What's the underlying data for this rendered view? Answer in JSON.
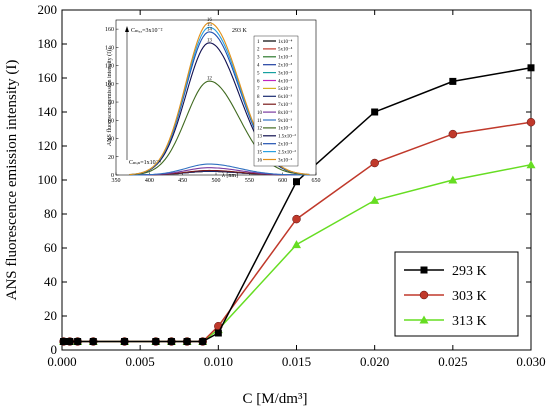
{
  "chart_data": {
    "type": "line",
    "xlabel": "C [M/dm³]",
    "ylabel": "ANS fluorescence emission intensity (I)",
    "xlim": [
      0.0,
      0.03
    ],
    "ylim": [
      0,
      200
    ],
    "x_ticks": [
      "0.000",
      "0.005",
      "0.010",
      "0.015",
      "0.020",
      "0.025",
      "0.030"
    ],
    "y_ticks": [
      "0",
      "20",
      "40",
      "60",
      "80",
      "100",
      "120",
      "140",
      "160",
      "180",
      "200"
    ],
    "legend_position": "bottom-right",
    "series": [
      {
        "name": "293 K",
        "color": "#000000",
        "marker": "square",
        "x": [
          0.0001,
          0.0005,
          0.001,
          0.002,
          0.004,
          0.006,
          0.007,
          0.008,
          0.009,
          0.01,
          0.015,
          0.02,
          0.025,
          0.03
        ],
        "y": [
          5,
          5,
          5,
          5,
          5,
          5,
          5,
          5,
          5,
          10,
          99,
          140,
          158,
          166
        ]
      },
      {
        "name": "303 K",
        "color": "#c0392b",
        "marker": "circle",
        "x": [
          0.0001,
          0.0005,
          0.001,
          0.002,
          0.004,
          0.006,
          0.007,
          0.008,
          0.009,
          0.01,
          0.015,
          0.02,
          0.025,
          0.03
        ],
        "y": [
          5,
          5,
          5,
          5,
          5,
          5,
          5,
          5,
          5,
          14,
          77,
          110,
          127,
          134
        ]
      },
      {
        "name": "313 K",
        "color": "#66dd22",
        "marker": "triangle",
        "x": [
          0.0001,
          0.0005,
          0.001,
          0.002,
          0.004,
          0.006,
          0.007,
          0.008,
          0.009,
          0.01,
          0.015,
          0.02,
          0.025,
          0.03
        ],
        "y": [
          5,
          5,
          5,
          5,
          5,
          5,
          5,
          5,
          5,
          12,
          62,
          88,
          100,
          109
        ]
      }
    ],
    "inset": {
      "type": "line",
      "xlabel": "λ [nm]",
      "ylabel": "ANS fluorescence emission intensity (I)",
      "xlim": [
        350,
        650
      ],
      "ylim": [
        0,
        170
      ],
      "x_ticks": [
        "350",
        "400",
        "450",
        "500",
        "550",
        "600",
        "650"
      ],
      "y_ticks": [
        "0",
        "20",
        "40",
        "60",
        "80",
        "100",
        "120",
        "140",
        "160"
      ],
      "temperature_label": "293 K",
      "c_max_label": "Cₘₐₓ=3x10⁻²",
      "c_min_label": "Cₘᵢₙ=1x10⁻⁴",
      "legend": [
        {
          "num": "1",
          "conc": "1x10⁻⁴",
          "color": "#000000"
        },
        {
          "num": "2",
          "conc": "5x10⁻⁴",
          "color": "#c0392b"
        },
        {
          "num": "3",
          "conc": "1x10⁻³",
          "color": "#2c7a2c"
        },
        {
          "num": "4",
          "conc": "2x10⁻³",
          "color": "#1f3fa0"
        },
        {
          "num": "5",
          "conc": "3x10⁻³",
          "color": "#16a0a0"
        },
        {
          "num": "6",
          "conc": "4x10⁻³",
          "color": "#c026c0"
        },
        {
          "num": "7",
          "conc": "5x10⁻³",
          "color": "#d4b020"
        },
        {
          "num": "8",
          "conc": "6x10⁻³",
          "color": "#1a2a70"
        },
        {
          "num": "9",
          "conc": "7x10⁻³",
          "color": "#7a1a1a"
        },
        {
          "num": "10",
          "conc": "8x10⁻³",
          "color": "#7a3aa0"
        },
        {
          "num": "11",
          "conc": "9x10⁻³",
          "color": "#3070c0"
        },
        {
          "num": "12",
          "conc": "1x10⁻²",
          "color": "#406a20"
        },
        {
          "num": "13",
          "conc": "1.5x10⁻²",
          "color": "#101050"
        },
        {
          "num": "14",
          "conc": "2x10⁻²",
          "color": "#2050b0"
        },
        {
          "num": "15",
          "conc": "2.5x10⁻²",
          "color": "#2aa0e0"
        },
        {
          "num": "16",
          "conc": "3x10⁻²",
          "color": "#e0901a"
        }
      ],
      "peak_wavelength": 490,
      "curves": [
        {
          "num": "1",
          "peak": 4,
          "color": "#000000"
        },
        {
          "num": "2",
          "peak": 4,
          "color": "#c0392b"
        },
        {
          "num": "3",
          "peak": 4,
          "color": "#2c7a2c"
        },
        {
          "num": "4",
          "peak": 4,
          "color": "#1f3fa0"
        },
        {
          "num": "5",
          "peak": 4,
          "color": "#16a0a0"
        },
        {
          "num": "6",
          "peak": 4,
          "color": "#c026c0"
        },
        {
          "num": "7",
          "peak": 4,
          "color": "#d4b020"
        },
        {
          "num": "8",
          "peak": 4,
          "color": "#1a2a70"
        },
        {
          "num": "9",
          "peak": 5,
          "color": "#7a1a1a"
        },
        {
          "num": "10",
          "peak": 8,
          "color": "#7a3aa0"
        },
        {
          "num": "11",
          "peak": 12,
          "color": "#3070c0"
        },
        {
          "num": "12",
          "peak": 103,
          "color": "#406a20"
        },
        {
          "num": "13",
          "peak": 145,
          "color": "#101050"
        },
        {
          "num": "14",
          "peak": 157,
          "color": "#2050b0"
        },
        {
          "num": "15",
          "peak": 162,
          "color": "#2aa0e0"
        },
        {
          "num": "16",
          "peak": 167,
          "color": "#e0901a"
        }
      ]
    }
  }
}
